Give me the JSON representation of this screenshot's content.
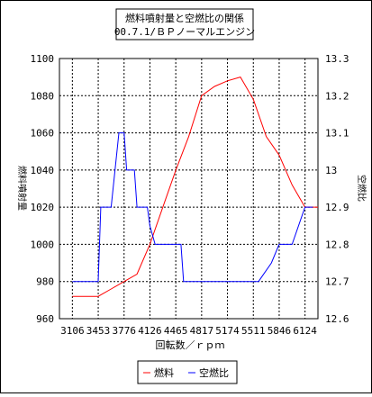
{
  "chart_data": {
    "type": "line",
    "title": [
      "燃料噴射量と空燃比の関係",
      "00.7.1/ＢＰノーマルエンジン"
    ],
    "xlabel": "回転数／ｒｐｍ",
    "ylabel_left": "燃料噴射量",
    "ylabel_right": "空燃比",
    "x_ticks": [
      "3106",
      "3453",
      "3776",
      "4126",
      "4465",
      "4817",
      "5174",
      "5511",
      "5846",
      "6124"
    ],
    "y_left_ticks": [
      "960",
      "980",
      "1000",
      "1020",
      "1040",
      "1060",
      "1080",
      "1100"
    ],
    "y_right_ticks": [
      "12.6",
      "12.7",
      "12.8",
      "12.9",
      "13",
      "13.1",
      "13.2",
      "13.3"
    ],
    "ylim_left": [
      960,
      1100
    ],
    "ylim_right": [
      12.6,
      13.3
    ],
    "grid": true,
    "legend_position": "bottom",
    "series": [
      {
        "name": "燃料",
        "color": "#ff0000",
        "axis": "left",
        "x": [
          0,
          0.5,
          1,
          1.5,
          2,
          2.5,
          3,
          3.5,
          4,
          4.5,
          5,
          5.5,
          6,
          6.5,
          7,
          7.5,
          8,
          8.5,
          9,
          9.5
        ],
        "values": [
          972,
          972,
          972,
          976,
          980,
          984,
          1000,
          1020,
          1040,
          1058,
          1080,
          1085,
          1088,
          1090,
          1078,
          1058,
          1048,
          1032,
          1020,
          1020
        ]
      },
      {
        "name": "空燃比",
        "color": "#0000ff",
        "axis": "right",
        "x": [
          0,
          0.5,
          1,
          1.1,
          1.5,
          1.8,
          2.0,
          2.1,
          2.4,
          2.5,
          2.9,
          3.0,
          3.2,
          3.5,
          4.0,
          4.2,
          4.3,
          4.8,
          5.5,
          6.0,
          6.5,
          7.0,
          7.2,
          7.7,
          8.0,
          8.5,
          9.0,
          9.3
        ],
        "values": [
          12.7,
          12.7,
          12.7,
          12.9,
          12.9,
          13.1,
          13.1,
          13.0,
          13.0,
          12.9,
          12.9,
          12.85,
          12.8,
          12.8,
          12.8,
          12.8,
          12.7,
          12.7,
          12.7,
          12.7,
          12.7,
          12.7,
          12.7,
          12.75,
          12.8,
          12.8,
          12.9,
          12.9
        ]
      }
    ]
  }
}
